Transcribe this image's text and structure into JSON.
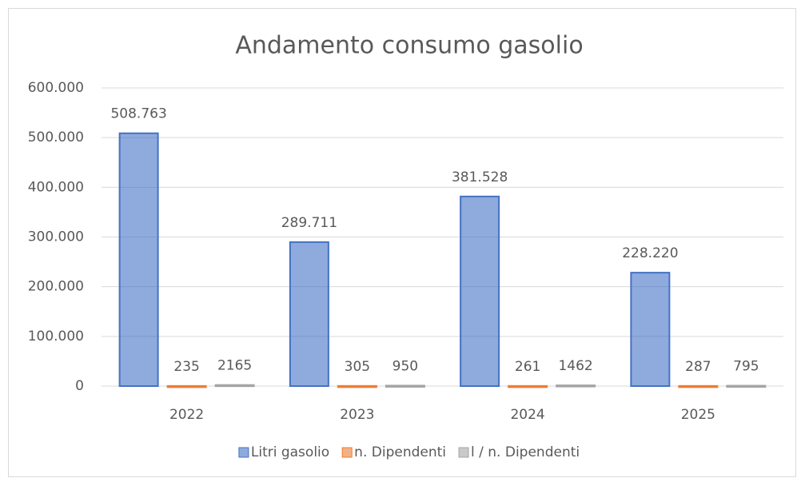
{
  "chart_data": {
    "type": "bar",
    "title": "Andamento consumo gasolio",
    "categories": [
      "2022",
      "2023",
      "2024",
      "2025"
    ],
    "series": [
      {
        "name": "Litri gasolio",
        "color": "#4472c4",
        "values": [
          508763,
          289711,
          381528,
          228220
        ],
        "value_labels": [
          "508.763",
          "289.711",
          "381.528",
          "228.220"
        ]
      },
      {
        "name": "n. Dipendenti",
        "color": "#ed7d31",
        "values": [
          235,
          305,
          261,
          287
        ]
      },
      {
        "name": "l / n. Dipendenti",
        "color": "#a5a5a5",
        "values": [
          2165,
          950,
          1462,
          795
        ]
      }
    ],
    "ylim": [
      0,
      600000
    ],
    "yticks": [
      0,
      {
        "value": 100000,
        "label": "100.000"
      },
      {
        "value": 200000,
        "label": "200.000"
      },
      {
        "value": 300000,
        "label": "300.000"
      },
      {
        "value": 400000,
        "label": "400.000"
      },
      {
        "value": 500000,
        "label": "500.000"
      },
      {
        "value": 600000,
        "label": "600.000"
      }
    ],
    "grid": true,
    "legend": "bottom"
  }
}
